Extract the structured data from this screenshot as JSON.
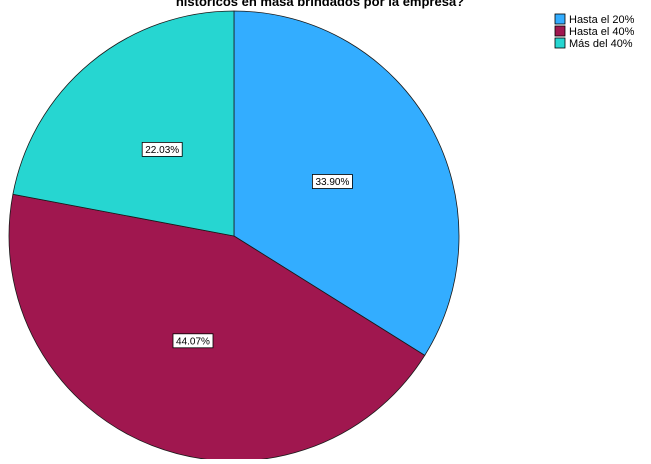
{
  "chart_data": {
    "type": "pie",
    "title": "históricos en masa brindados por la empresa?",
    "categories": [
      "Hasta el 20%",
      "Hasta el 40%",
      "Más del 40%"
    ],
    "values": [
      33.9,
      44.07,
      22.03
    ],
    "labels": [
      "33.90%",
      "44.07%",
      "22.03%"
    ],
    "colors": [
      "#33ADFF",
      "#A0174F",
      "#26D6D1"
    ],
    "start_angle_deg": 0,
    "direction": "clockwise",
    "legend_position": "top-right"
  }
}
